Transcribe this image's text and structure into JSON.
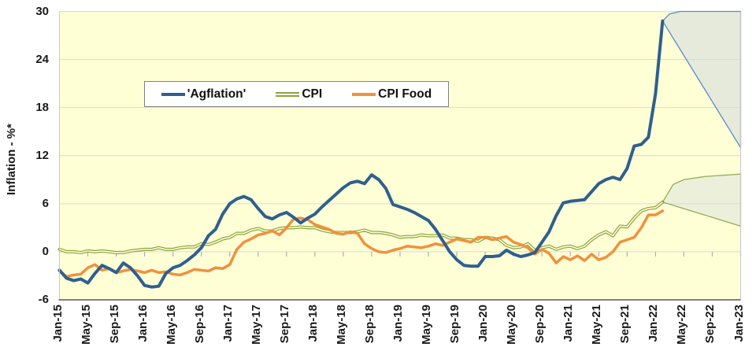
{
  "y_axis": {
    "title": "Inflation - %*",
    "tick_labels": [
      "30",
      "24",
      "18",
      "12",
      "6",
      "0",
      "-6"
    ],
    "tick_values": [
      30,
      24,
      18,
      12,
      6,
      0,
      -6
    ]
  },
  "x_axis": {
    "tick_labels": [
      "Jan-15",
      "May-15",
      "Sep-15",
      "Jan-16",
      "May-16",
      "Sep-16",
      "Jan-17",
      "May-17",
      "Sep-17",
      "Jan-18",
      "May-18",
      "Sep-18",
      "Jan-19",
      "May-19",
      "Sep-19",
      "Jan-20",
      "May-20",
      "Sep-20",
      "Jan-21",
      "May-21",
      "Sep-21",
      "Jan-22",
      "May-22",
      "Sep-22",
      "Jan-23"
    ],
    "months_between_ticks": 4
  },
  "legend": {
    "items": [
      {
        "label": "'Agflation'",
        "swatch": "thick-line",
        "color": "#2F5F8F"
      },
      {
        "label": "CPI",
        "swatch": "double-line",
        "color": "#8BA33F"
      },
      {
        "label": "CPI Food",
        "swatch": "thick-line",
        "color": "#F0913D"
      }
    ]
  },
  "colors": {
    "plot_background": "#FFFFD6",
    "gridline": "#D9D9D9",
    "axis_bottom": "#6E6E6E",
    "axis_side": "#C9C9C9",
    "tick_mark": "#ADADBD",
    "agflation": "#2F5F8F",
    "cpi": "#8BA33F",
    "cpi_food": "#F0913D",
    "agflation_fan_fill": "#E6EADB",
    "agflation_fan_stroke": "#5B8BC9",
    "cpi_fan_fill": "#ECF0DA",
    "cpi_fan_stroke": "#94AD53"
  },
  "chart_data": {
    "type": "line",
    "title": "",
    "ylabel": "Inflation - %*",
    "xlabel": "",
    "ylim": [
      -6,
      30
    ],
    "x_months_total": 96,
    "x_start": "Jan-15",
    "x_end": "Jan-23",
    "grid": true,
    "legend_position": "top-center-inside",
    "series": [
      {
        "name": "'Agflation'",
        "style": "thick",
        "start": "Jan-15",
        "end": "Feb-22",
        "values": [
          -2.3,
          -3.3,
          -3.6,
          -3.4,
          -3.9,
          -2.7,
          -1.7,
          -2.1,
          -2.6,
          -1.4,
          -2.0,
          -3.0,
          -4.2,
          -4.4,
          -4.3,
          -2.7,
          -2.0,
          -1.7,
          -1.1,
          -0.4,
          0.5,
          2.0,
          2.8,
          4.7,
          6.0,
          6.6,
          6.9,
          6.5,
          5.4,
          4.4,
          4.1,
          4.6,
          4.9,
          4.3,
          3.6,
          4.2,
          4.7,
          5.6,
          6.4,
          7.2,
          8.0,
          8.6,
          8.8,
          8.5,
          9.6,
          9.0,
          7.9,
          5.9,
          5.6,
          5.3,
          4.9,
          4.4,
          3.9,
          2.8,
          1.4,
          0.0,
          -1.0,
          -1.7,
          -1.8,
          -1.8,
          -0.6,
          -0.6,
          -0.5,
          0.2,
          -0.3,
          -0.6,
          -0.4,
          -0.1,
          1.2,
          2.5,
          4.5,
          6.1,
          6.3,
          6.4,
          6.5,
          7.5,
          8.5,
          9.0,
          9.3,
          9.0,
          10.4,
          13.2,
          13.4,
          14.3,
          19.7,
          28.8
        ]
      },
      {
        "name": "CPI",
        "style": "double",
        "start": "Jan-15",
        "end": "Feb-22",
        "values": [
          0.3,
          0.0,
          0.0,
          -0.1,
          0.1,
          0.0,
          0.1,
          0.0,
          -0.1,
          -0.1,
          0.1,
          0.2,
          0.3,
          0.3,
          0.5,
          0.3,
          0.3,
          0.5,
          0.6,
          0.6,
          1.0,
          0.9,
          1.2,
          1.6,
          1.8,
          2.3,
          2.3,
          2.7,
          2.9,
          2.6,
          2.6,
          2.9,
          3.0,
          3.0,
          3.1,
          3.0,
          3.0,
          2.7,
          2.5,
          2.4,
          2.4,
          2.4,
          2.5,
          2.7,
          2.4,
          2.4,
          2.3,
          2.1,
          1.8,
          1.9,
          1.9,
          2.1,
          2.0,
          2.0,
          2.1,
          1.7,
          1.7,
          1.5,
          1.5,
          1.3,
          1.8,
          1.7,
          1.5,
          0.8,
          0.5,
          0.6,
          1.0,
          0.2,
          0.5,
          0.7,
          0.3,
          0.6,
          0.7,
          0.4,
          0.7,
          1.5,
          2.1,
          2.5,
          2.0,
          3.2,
          3.1,
          4.2,
          5.1,
          5.4,
          5.5,
          6.2
        ]
      },
      {
        "name": "CPI Food",
        "style": "thick",
        "start": "Jan-15",
        "end": "Feb-22",
        "values": [
          -2.4,
          -3.1,
          -2.9,
          -2.8,
          -2.0,
          -1.6,
          -2.3,
          -2.1,
          -2.6,
          -2.4,
          -2.2,
          -2.4,
          -2.6,
          -2.3,
          -2.6,
          -2.5,
          -2.8,
          -2.9,
          -2.6,
          -2.2,
          -2.3,
          -2.4,
          -2.0,
          -2.1,
          -1.6,
          0.3,
          1.2,
          1.6,
          2.1,
          2.3,
          2.6,
          2.1,
          3.0,
          4.1,
          4.2,
          4.0,
          3.4,
          3.1,
          2.8,
          2.3,
          2.2,
          2.5,
          2.3,
          1.0,
          0.4,
          0.0,
          -0.1,
          0.2,
          0.4,
          0.7,
          0.6,
          0.5,
          0.7,
          1.0,
          0.8,
          1.2,
          1.6,
          1.4,
          1.2,
          1.8,
          1.8,
          1.5,
          1.7,
          1.9,
          1.2,
          0.9,
          0.5,
          -0.3,
          0.3,
          -0.2,
          -1.4,
          -0.6,
          -1.0,
          -0.5,
          -1.1,
          -0.3,
          -1.0,
          -0.7,
          0.0,
          1.2,
          1.5,
          1.8,
          3.0,
          4.6,
          4.6,
          5.1
        ]
      }
    ],
    "forecast_fans": [
      {
        "series": "'Agflation'",
        "note": "forecast range Feb-22 to Jan-23",
        "points_month_value": [
          [
            85,
            28.8
          ],
          [
            86,
            29.7
          ],
          [
            87.5,
            30.0
          ],
          [
            96,
            30.0
          ],
          [
            96,
            13.0
          ]
        ]
      },
      {
        "series": "CPI",
        "note": "forecast range Feb-22 to Jan-23",
        "points_month_value": [
          [
            85,
            6.2
          ],
          [
            86.5,
            8.4
          ],
          [
            88,
            9.0
          ],
          [
            91,
            9.4
          ],
          [
            96,
            9.7
          ],
          [
            96,
            3.2
          ]
        ]
      }
    ]
  }
}
